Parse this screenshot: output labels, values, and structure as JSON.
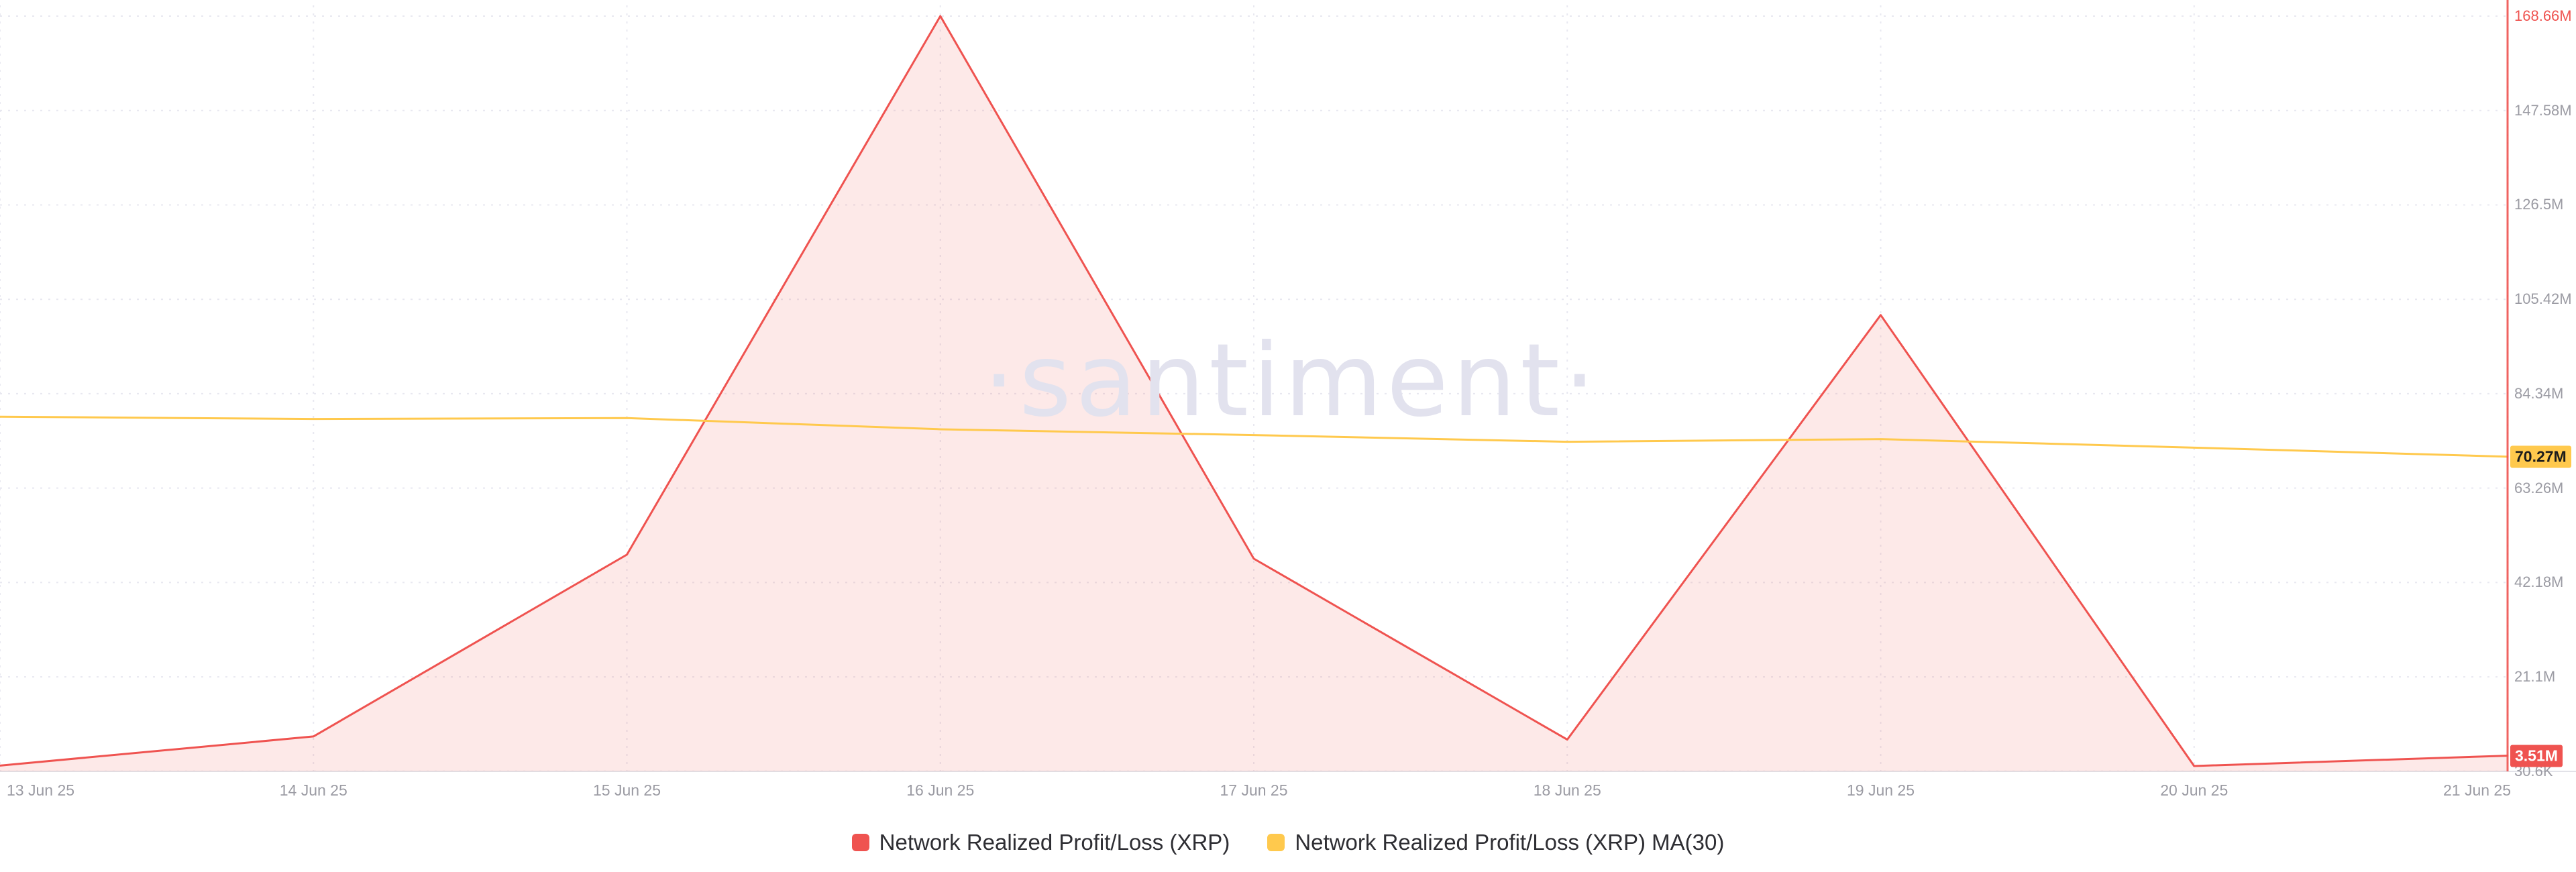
{
  "watermark": "·santiment·",
  "colors": {
    "red": "#ef5350",
    "red_fill": "rgba(239,83,80,0.13)",
    "yellow": "#ffc94d",
    "grid": "#e8e8f0",
    "baseline": "#e2e2e8",
    "axis_text": "#9b9ba3"
  },
  "y_axis": {
    "ticks": [
      {
        "label": "168.66M",
        "value": 168.66,
        "color": "#ef5350"
      },
      {
        "label": "147.58M",
        "value": 147.58
      },
      {
        "label": "126.5M",
        "value": 126.5
      },
      {
        "label": "105.42M",
        "value": 105.42
      },
      {
        "label": "84.34M",
        "value": 84.34
      },
      {
        "label": "63.26M",
        "value": 63.26
      },
      {
        "label": "42.18M",
        "value": 42.18
      },
      {
        "label": "21.1M",
        "value": 21.1
      },
      {
        "label": "30.6K",
        "value": 0.0306
      }
    ]
  },
  "x_axis": {
    "labels": [
      "13 Jun 25",
      "14 Jun 25",
      "15 Jun 25",
      "16 Jun 25",
      "17 Jun 25",
      "18 Jun 25",
      "19 Jun 25",
      "20 Jun 25",
      "21 Jun 25"
    ]
  },
  "badges": [
    {
      "label": "70.27M",
      "value": 70.27,
      "bg": "#ffc94d",
      "text_color": "#1c1c1c"
    },
    {
      "label": "3.51M",
      "value": 3.51,
      "bg": "#ef5350",
      "text_color": "#ffffff"
    }
  ],
  "legend": {
    "items": [
      {
        "label": "Network Realized Profit/Loss (XRP)",
        "color": "#ef5350"
      },
      {
        "label": "Network Realized Profit/Loss (XRP) MA(30)",
        "color": "#ffc94d"
      }
    ]
  },
  "chart_data": {
    "type": "area",
    "title": "Network Realized Profit/Loss (XRP)",
    "x": [
      "13 Jun 25",
      "14 Jun 25",
      "15 Jun 25",
      "16 Jun 25",
      "17 Jun 25",
      "18 Jun 25",
      "19 Jun 25",
      "20 Jun 25",
      "21 Jun 25"
    ],
    "series": [
      {
        "name": "Network Realized Profit/Loss (XRP)",
        "type": "area",
        "color": "#ef5350",
        "unit": "M",
        "values": [
          1.3,
          7.8,
          48.4,
          168.66,
          47.5,
          7.1,
          101.9,
          1.2,
          3.51
        ]
      },
      {
        "name": "Network Realized Profit/Loss (XRP) MA(30)",
        "type": "line",
        "color": "#ffc94d",
        "unit": "M",
        "values": [
          79.2,
          78.7,
          78.9,
          76.4,
          75.1,
          73.6,
          74.2,
          72.3,
          70.27
        ]
      }
    ],
    "ylim": [
      0,
      168.66
    ],
    "y_unit": "M",
    "grid": true,
    "legend_position": "bottom",
    "current_values": {
      "Network Realized Profit/Loss (XRP)": 3.51,
      "Network Realized Profit/Loss (XRP) MA(30)": 70.27
    }
  }
}
